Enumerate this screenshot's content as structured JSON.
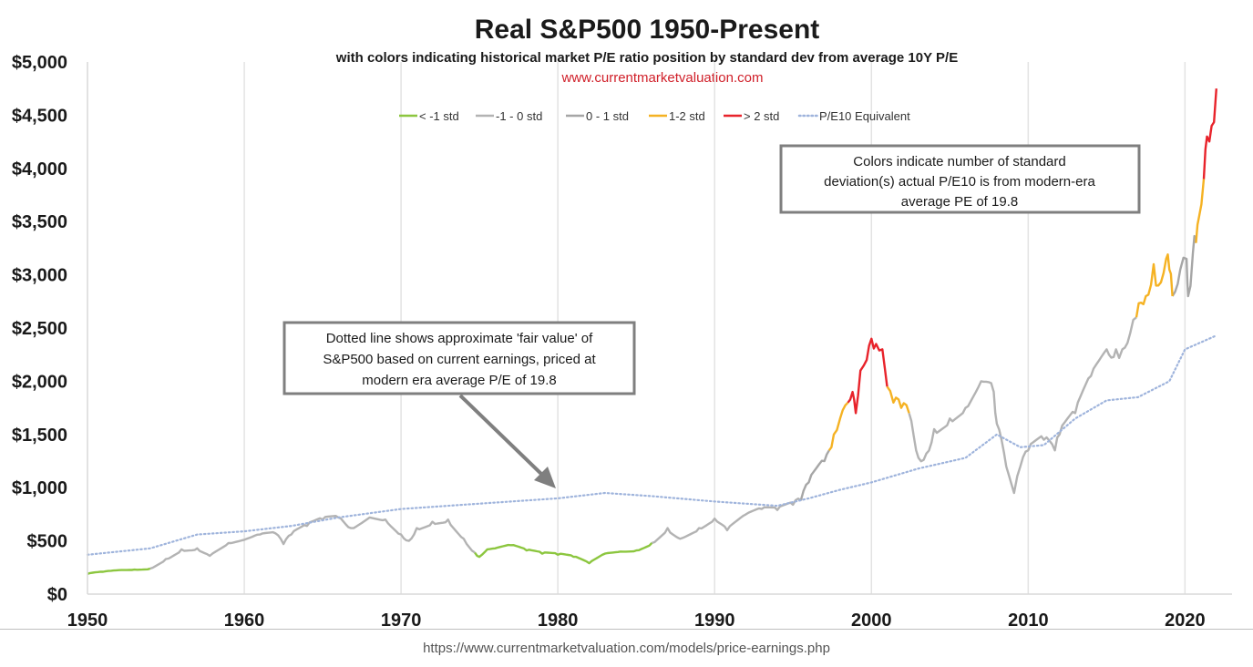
{
  "chart_data": {
    "type": "line",
    "title": "Real S&P500 1950-Present",
    "subtitle": "with colors indicating historical market P/E ratio position by standard dev from average 10Y P/E",
    "website": "www.currentmarketvaluation.com",
    "xlabel": "",
    "ylabel": "",
    "xlim": [
      1950,
      2023
    ],
    "ylim": [
      0,
      5000
    ],
    "grid": "vertical",
    "x_ticks": [
      1950,
      1960,
      1970,
      1980,
      1990,
      2000,
      2010,
      2020
    ],
    "y_ticks": [
      "$0",
      "$500",
      "$1,000",
      "$1,500",
      "$2,000",
      "$2,500",
      "$3,000",
      "$3,500",
      "$4,000",
      "$4,500",
      "$5,000"
    ],
    "y_tick_values": [
      0,
      500,
      1000,
      1500,
      2000,
      2500,
      3000,
      3500,
      4000,
      4500,
      5000
    ],
    "legend": [
      {
        "label": "< -1 std",
        "color": "#8cc63f",
        "style": "solid"
      },
      {
        "label": "-1 - 0 std",
        "color": "#b3b3b3",
        "style": "solid"
      },
      {
        "label": "0 - 1 std",
        "color": "#a6a6a6",
        "style": "solid"
      },
      {
        "label": "1-2 std",
        "color": "#f5b223",
        "style": "solid"
      },
      {
        "label": "> 2 std",
        "color": "#e8232b",
        "style": "solid"
      },
      {
        "label": "P/E10 Equivalent",
        "color": "#9fb4dc",
        "style": "dotted"
      }
    ],
    "series": [
      {
        "name": "Real S&P500 (< -1 std)",
        "color": "#8cc63f",
        "segments": [
          [
            [
              1950,
              190
            ],
            [
              1951,
              210
            ],
            [
              1952,
              225
            ],
            [
              1953,
              230
            ],
            [
              1954,
              240
            ]
          ],
          [
            [
              1974.7,
              390
            ],
            [
              1975,
              350
            ],
            [
              1975.5,
              420
            ],
            [
              1976,
              430
            ],
            [
              1977,
              460
            ],
            [
              1978,
              410
            ],
            [
              1979,
              380
            ],
            [
              1980,
              370
            ],
            [
              1981,
              350
            ],
            [
              1982,
              290
            ],
            [
              1983,
              380
            ],
            [
              1984,
              400
            ],
            [
              1985,
              410
            ],
            [
              1986,
              480
            ]
          ]
        ]
      },
      {
        "name": "Real S&P500 (-1 - 0 std)",
        "color": "#b3b3b3",
        "segments": [
          [
            [
              1954,
              240
            ],
            [
              1955,
              330
            ],
            [
              1956,
              420
            ],
            [
              1957,
              430
            ],
            [
              1957.8,
              360
            ],
            [
              1959,
              480
            ],
            [
              1960,
              510
            ],
            [
              1961,
              560
            ],
            [
              1962,
              570
            ],
            [
              1962.5,
              470
            ],
            [
              1963,
              560
            ],
            [
              1964,
              640
            ],
            [
              1965,
              700
            ],
            [
              1966,
              720
            ],
            [
              1966.8,
              620
            ],
            [
              1968,
              720
            ],
            [
              1969,
              700
            ],
            [
              1970,
              560
            ],
            [
              1970.5,
              500
            ],
            [
              1971,
              620
            ],
            [
              1972,
              680
            ],
            [
              1973,
              700
            ],
            [
              1974,
              520
            ],
            [
              1974.7,
              390
            ]
          ],
          [
            [
              1986,
              480
            ],
            [
              1987,
              620
            ],
            [
              1987.8,
              520
            ],
            [
              1989,
              620
            ],
            [
              1990,
              710
            ],
            [
              1990.8,
              600
            ],
            [
              1992,
              750
            ],
            [
              1993,
              800
            ],
            [
              1994,
              790
            ],
            [
              1995,
              840
            ],
            [
              1995.5,
              880
            ]
          ],
          [
            [
              2002.4,
              1700
            ],
            [
              2003,
              1280
            ],
            [
              2003.5,
              1320
            ],
            [
              2004,
              1550
            ],
            [
              2005,
              1650
            ],
            [
              2006,
              1750
            ],
            [
              2007,
              2000
            ],
            [
              2007.8,
              1900
            ],
            [
              2008,
              1600
            ],
            [
              2008.6,
              1200
            ],
            [
              2009.1,
              950
            ],
            [
              2009.5,
              1200
            ],
            [
              2010,
              1350
            ],
            [
              2011,
              1450
            ],
            [
              2011.7,
              1350
            ],
            [
              2012,
              1500
            ],
            [
              2013,
              1700
            ],
            [
              2014,
              2050
            ],
            [
              2015,
              2300
            ],
            [
              2015.6,
              2300
            ],
            [
              2016,
              2300
            ],
            [
              2016.5,
              2450
            ],
            [
              2016.9,
              2600
            ]
          ]
        ]
      },
      {
        "name": "Real S&P500 (0 - 1 std)",
        "color": "#a6a6a6",
        "segments": [
          [
            [
              1995.5,
              880
            ],
            [
              1996,
              1050
            ],
            [
              1997,
              1250
            ],
            [
              1997.3,
              1350
            ]
          ],
          [
            [
              2019.2,
              2800
            ],
            [
              2019.7,
              3050
            ],
            [
              2020.1,
              3150
            ],
            [
              2020.2,
              2800
            ],
            [
              2020.5,
              3200
            ],
            [
              2020.7,
              3300
            ]
          ]
        ]
      },
      {
        "name": "Real S&P500 (1-2 std)",
        "color": "#f5b223",
        "segments": [
          [
            [
              1997.3,
              1350
            ],
            [
              1997.6,
              1500
            ],
            [
              1998,
              1650
            ],
            [
              1998.5,
              1800
            ]
          ],
          [
            [
              2001,
              1950
            ],
            [
              2001.4,
              1800
            ],
            [
              2001.9,
              1750
            ],
            [
              2002.4,
              1700
            ]
          ],
          [
            [
              2016.9,
              2600
            ],
            [
              2017.5,
              2800
            ],
            [
              2018,
              3100
            ],
            [
              2018.3,
              2900
            ],
            [
              2018.8,
              3150
            ],
            [
              2019,
              3050
            ],
            [
              2019.2,
              2800
            ]
          ],
          [
            [
              2020.7,
              3300
            ],
            [
              2020.9,
              3550
            ],
            [
              2021.2,
              3900
            ]
          ]
        ]
      },
      {
        "name": "Real S&P500 (> 2 std)",
        "color": "#e8232b",
        "segments": [
          [
            [
              1998.5,
              1800
            ],
            [
              1998.8,
              1900
            ],
            [
              1999,
              1700
            ],
            [
              1999.3,
              2100
            ],
            [
              1999.7,
              2200
            ],
            [
              2000,
              2400
            ],
            [
              2000.3,
              2350
            ],
            [
              2000.7,
              2300
            ],
            [
              2001,
              1950
            ]
          ],
          [
            [
              2021.2,
              3900
            ],
            [
              2021.4,
              4300
            ],
            [
              2021.7,
              4400
            ],
            [
              2022,
              4750
            ]
          ]
        ]
      },
      {
        "name": "P/E10 Equivalent",
        "color": "#9fb4dc",
        "style": "dotted",
        "points": [
          [
            1950,
            370
          ],
          [
            1954,
            430
          ],
          [
            1957,
            560
          ],
          [
            1960,
            590
          ],
          [
            1963,
            640
          ],
          [
            1966,
            720
          ],
          [
            1970,
            800
          ],
          [
            1974,
            840
          ],
          [
            1977,
            870
          ],
          [
            1980,
            900
          ],
          [
            1983,
            950
          ],
          [
            1986,
            920
          ],
          [
            1990,
            870
          ],
          [
            1994,
            830
          ],
          [
            1996,
            900
          ],
          [
            1998,
            980
          ],
          [
            2000,
            1050
          ],
          [
            2003,
            1180
          ],
          [
            2006,
            1280
          ],
          [
            2008,
            1500
          ],
          [
            2009.5,
            1380
          ],
          [
            2011,
            1400
          ],
          [
            2013,
            1650
          ],
          [
            2015,
            1820
          ],
          [
            2017,
            1850
          ],
          [
            2019,
            2000
          ],
          [
            2020,
            2300
          ],
          [
            2022,
            2430
          ]
        ]
      }
    ],
    "annotations": [
      {
        "name": "std-note",
        "lines": [
          "Colors indicate number of standard",
          "deviation(s) actual P/E10 is from modern-era",
          "average PE of 19.8"
        ]
      },
      {
        "name": "fair-value-note",
        "lines": [
          "Dotted line shows approximate 'fair value' of",
          "S&P500 based on current earnings, priced at",
          "modern era average P/E of 19.8"
        ]
      }
    ]
  },
  "footer": {
    "source_url": "https://www.currentmarketvaluation.com/models/price-earnings.php"
  }
}
